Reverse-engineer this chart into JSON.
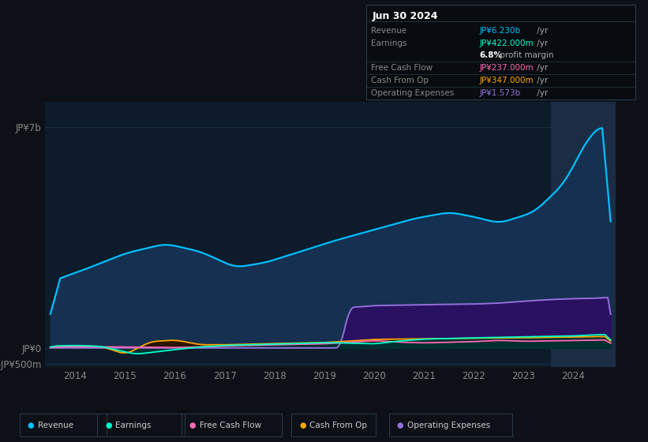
{
  "bg_color": "#0d1117",
  "plot_bg": "#0d1b2a",
  "title": "Jun 30 2024",
  "info_box_rows": [
    {
      "label": "Revenue",
      "value": "JP¥6.230b",
      "suffix": " /yr",
      "value_color": "#00bfff",
      "has_divider": false
    },
    {
      "label": "Earnings",
      "value": "JP¥422.000m",
      "suffix": " /yr",
      "value_color": "#00ffcc",
      "has_divider": false
    },
    {
      "label": "",
      "value": "6.8%",
      "suffix": " profit margin",
      "value_color": "#ffffff",
      "suffix_color": "#aaaaaa",
      "has_divider": false
    },
    {
      "label": "Free Cash Flow",
      "value": "JP¥237.000m",
      "suffix": " /yr",
      "value_color": "#ff69b4",
      "has_divider": true
    },
    {
      "label": "Cash From Op",
      "value": "JP¥347.000m",
      "suffix": " /yr",
      "value_color": "#ffa500",
      "has_divider": true
    },
    {
      "label": "Operating Expenses",
      "value": "JP¥1.573b",
      "suffix": " /yr",
      "value_color": "#9370db",
      "has_divider": true
    }
  ],
  "revenue_color": "#00bfff",
  "revenue_fill": "#153050",
  "earnings_color": "#00ffcc",
  "earnings_fill": "#003333",
  "fcf_color": "#ff69b4",
  "fcf_fill": "#2a0a1a",
  "cop_color": "#ffa500",
  "cop_fill": "#2a1500",
  "opex_color": "#9370db",
  "opex_fill": "#2a1060",
  "highlight_fill": "#1a2d45",
  "grid_color": "#1e2e40",
  "tick_color": "#888888",
  "xlim": [
    2013.4,
    2024.85
  ],
  "ylim_lo": -600,
  "ylim_hi": 7800,
  "ytick_vals": [
    -500,
    0,
    7000
  ],
  "ytick_labels": [
    "-JP¥500m",
    "JP¥0",
    "JP¥7b"
  ],
  "xtick_vals": [
    2014,
    2015,
    2016,
    2017,
    2018,
    2019,
    2020,
    2021,
    2022,
    2023,
    2024
  ],
  "legend_labels": [
    "Revenue",
    "Earnings",
    "Free Cash Flow",
    "Cash From Op",
    "Operating Expenses"
  ],
  "legend_colors": [
    "#00bfff",
    "#00ffcc",
    "#ff69b4",
    "#ffa500",
    "#9370db"
  ]
}
